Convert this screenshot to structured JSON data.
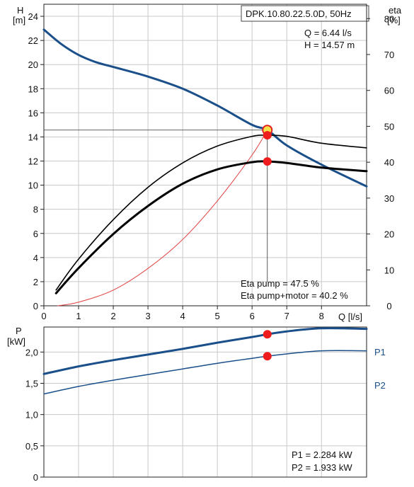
{
  "chart_data": [
    {
      "type": "line",
      "title": "DPK.10.80.22.5.0D, 50Hz",
      "operating_point": {
        "q_label": "Q = 6.44 l/s",
        "h_label": "H = 14.57 m",
        "q": 6.44,
        "h": 14.57
      },
      "x_axis": {
        "label": "Q [l/s]",
        "range": [
          0,
          9.3
        ],
        "ticks": [
          0,
          1,
          2,
          3,
          4,
          5,
          6,
          7,
          8
        ]
      },
      "y_left": {
        "label_line1": "H",
        "label_line2": "[m]",
        "range": [
          0,
          25
        ],
        "ticks": [
          0,
          2,
          4,
          6,
          8,
          10,
          12,
          14,
          16,
          18,
          20,
          22,
          24
        ]
      },
      "y_right": {
        "label_line1": "eta",
        "label_line2": "[%]",
        "range": [
          0,
          84
        ],
        "ticks": [
          0,
          10,
          20,
          30,
          40,
          50,
          60,
          70,
          80
        ]
      },
      "grid": true,
      "eta_text": {
        "pump": "Eta pump = 47.5 %",
        "pump_motor": "Eta pump+motor = 40.2 %"
      },
      "series": [
        {
          "key": "head",
          "axis": "left",
          "color": "#1a4f8a",
          "width": 3,
          "x": [
            0,
            0.5,
            1,
            1.5,
            2,
            3,
            4,
            5,
            6,
            6.44,
            7,
            8,
            9.3
          ],
          "y": [
            22.9,
            21.7,
            20.8,
            20.2,
            19.8,
            19.0,
            18.0,
            16.6,
            15.0,
            14.57,
            13.3,
            11.7,
            9.9
          ]
        },
        {
          "key": "system",
          "axis": "left",
          "color": "#e04040",
          "width": 1,
          "x": [
            0.4,
            1,
            2,
            3,
            4,
            5,
            6,
            6.44
          ],
          "y": [
            0.0,
            0.3,
            1.3,
            3.1,
            5.5,
            8.7,
            12.5,
            14.57
          ]
        },
        {
          "key": "eta_pump",
          "axis": "right",
          "color": "#000000",
          "width": 1.6,
          "x": [
            0.35,
            1,
            2,
            3,
            4,
            5,
            6,
            6.44,
            7,
            8,
            9.3
          ],
          "y": [
            4.4,
            13.0,
            24.0,
            33.0,
            39.8,
            44.5,
            47.2,
            47.5,
            47.2,
            45.3,
            44.0
          ]
        },
        {
          "key": "eta_pump_motor",
          "axis": "right",
          "color": "#000000",
          "width": 3,
          "x": [
            0.35,
            1,
            2,
            3,
            4,
            5,
            6,
            6.44,
            7,
            8,
            9.3
          ],
          "y": [
            3.5,
            10.5,
            20.0,
            27.8,
            34.0,
            38.0,
            40.0,
            40.2,
            39.8,
            38.5,
            37.5
          ]
        }
      ],
      "markers": [
        {
          "axis": "left",
          "x": 6.44,
          "y": 14.57,
          "style": "ring"
        },
        {
          "axis": "right",
          "x": 6.44,
          "y": 47.5,
          "style": "dot"
        },
        {
          "axis": "right",
          "x": 6.44,
          "y": 40.2,
          "style": "dot"
        }
      ]
    },
    {
      "type": "line",
      "x_axis": {
        "range": [
          0,
          9.3
        ]
      },
      "y_left": {
        "label_line1": "P",
        "label_line2": "[kW]",
        "range": [
          0,
          2.4
        ],
        "ticks": [
          0,
          0.5,
          1.0,
          1.5,
          2.0
        ],
        "tick_labels": [
          "0",
          "0,5",
          "1,0",
          "1,5",
          "2,0"
        ]
      },
      "grid": true,
      "power_text": {
        "p1": "P1 = 2.284 kW",
        "p2": "P2 = 1.933 kW"
      },
      "series": [
        {
          "key": "p1",
          "name": "P1",
          "color": "#1a4f8a",
          "width": 3,
          "x": [
            0,
            1,
            2,
            3,
            4,
            5,
            6,
            6.44,
            7,
            8,
            9.3
          ],
          "y": [
            1.65,
            1.77,
            1.87,
            1.96,
            2.05,
            2.15,
            2.24,
            2.284,
            2.33,
            2.38,
            2.37
          ]
        },
        {
          "key": "p2",
          "name": "P2",
          "color": "#1a4f8a",
          "width": 1.5,
          "x": [
            0,
            1,
            2,
            3,
            4,
            5,
            6,
            6.44,
            7,
            8,
            9.3
          ],
          "y": [
            1.33,
            1.45,
            1.55,
            1.64,
            1.73,
            1.82,
            1.9,
            1.933,
            1.97,
            2.02,
            2.02
          ]
        }
      ],
      "markers": [
        {
          "x": 6.44,
          "y": 2.284,
          "style": "dot"
        },
        {
          "x": 6.44,
          "y": 1.933,
          "style": "dot"
        }
      ]
    }
  ]
}
